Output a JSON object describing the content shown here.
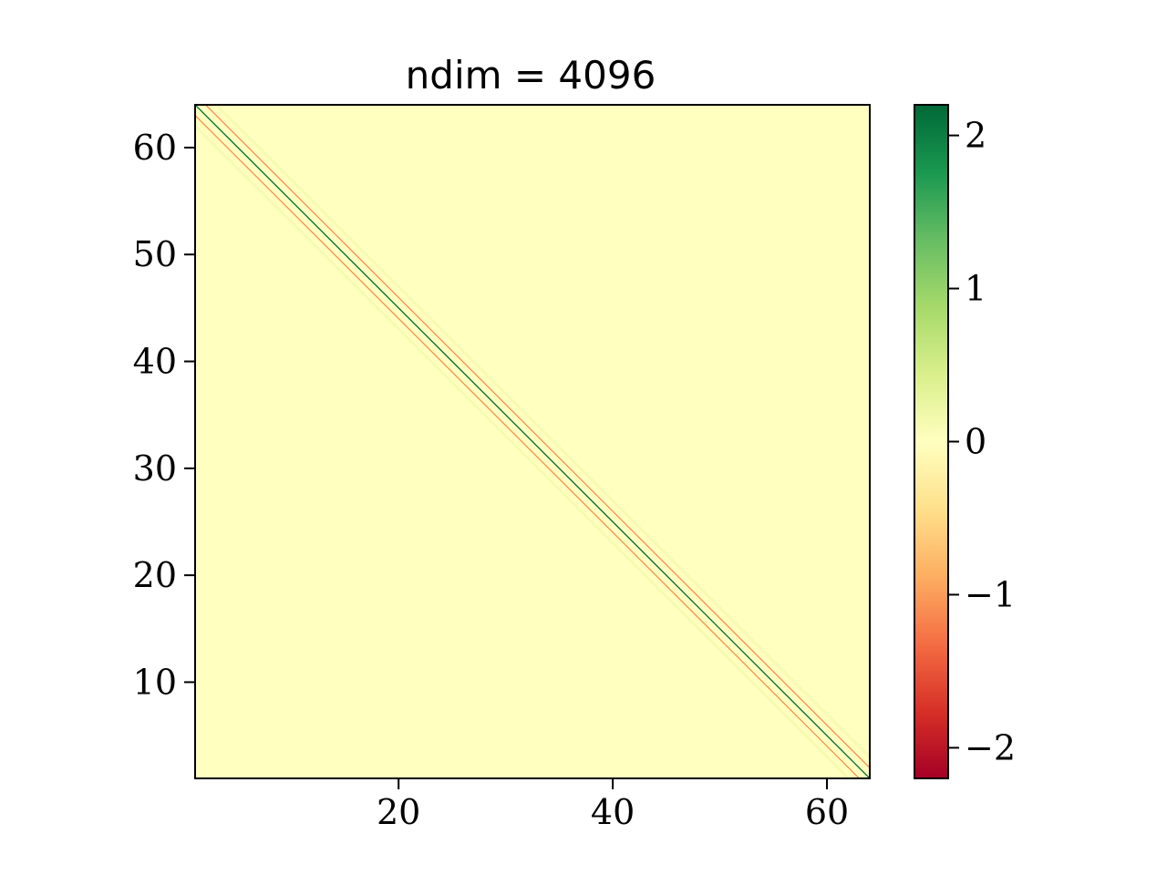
{
  "chart_data": {
    "type": "heatmap",
    "title": "ndim = 4096",
    "xlabel": "",
    "ylabel": "",
    "matrix_size": 64,
    "x_range": [
      1,
      64
    ],
    "y_range": [
      1,
      64
    ],
    "x_ticks": [
      20,
      40,
      60
    ],
    "y_ticks": [
      10,
      20,
      30,
      40,
      50,
      60
    ],
    "x_tick_labels": [
      "20",
      "40",
      "60"
    ],
    "y_tick_labels": [
      "10",
      "20",
      "30",
      "40",
      "50",
      "60"
    ],
    "colormap": "RdYlGn",
    "vmin": -2.2,
    "vmax": 2.2,
    "colorbar_ticks": [
      2,
      1,
      0,
      -1,
      -2
    ],
    "colorbar_tick_labels": [
      "2",
      "1",
      "0",
      "−1",
      "−2"
    ],
    "background_value": 0,
    "diagonal_bands": [
      {
        "offset": 0,
        "value": 2.2,
        "description": "main diagonal (dark green)"
      },
      {
        "offset": -1,
        "value": -1.1,
        "description": "sub-diagonal (orange)"
      },
      {
        "offset": 1,
        "value": -1.1,
        "description": "super-diagonal (orange)"
      },
      {
        "offset": -2,
        "value": 0.12,
        "description": "faint second diagonal"
      },
      {
        "offset": 2,
        "value": 0.12,
        "description": "faint second diagonal"
      }
    ],
    "grid": false,
    "legend": "none",
    "colors": {
      "max": "#006837",
      "mid": "#ffffbf",
      "min": "#a50026",
      "background": "#ffffbf"
    }
  }
}
